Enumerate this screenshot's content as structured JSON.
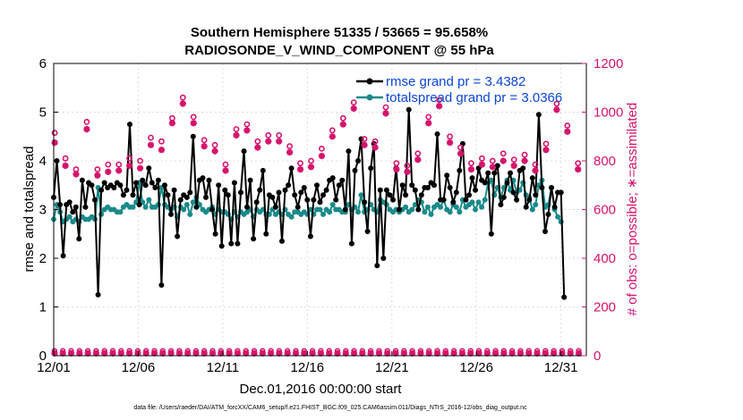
{
  "chart_data": {
    "type": "line",
    "title": "Southern Hemisphere 51335 / 53665 = 95.658%",
    "subtitle": "RADIOSONDE_V_WIND_COMPONENT @ 55 hPa",
    "xlabel": "Dec.01,2016 00:00:00 start",
    "ylabel_left": "rmse and totalspread",
    "ylabel_right": "# of obs: o=possible; ∗=assimilated",
    "footnote": "data file: /Users/raeder/DAI/ATM_forcXX/CAM6_setup/f.e21.FHIST_BGC.f09_025.CAM6assim.011/Diags_NTrS_2016-12/obs_diag_output.nc",
    "xlim": [
      0,
      31.5
    ],
    "ylim_left": [
      0,
      6
    ],
    "ylim_right": [
      0,
      1200
    ],
    "x_ticks": [
      0,
      5,
      10,
      15,
      20,
      25,
      30
    ],
    "x_tick_labels": [
      "12/01",
      "12/06",
      "12/11",
      "12/16",
      "12/21",
      "12/26",
      "12/31"
    ],
    "y_ticks_left": [
      0,
      1,
      2,
      3,
      4,
      5,
      6
    ],
    "y_ticks_right": [
      0,
      200,
      400,
      600,
      800,
      1000,
      1200
    ],
    "series": [
      {
        "name": "rmse grand pr = 3.4382",
        "axis": "left",
        "color": "#000000",
        "values": [
          3.25,
          4.0,
          3.1,
          2.05,
          3.1,
          3.15,
          2.95,
          3.05,
          2.4,
          3.6,
          3.05,
          3.55,
          3.5,
          3.2,
          1.25,
          3.4,
          3.55,
          3.45,
          3.5,
          3.45,
          3.55,
          3.5,
          3.3,
          3.4,
          4.75,
          3.3,
          3.55,
          3.1,
          3.6,
          3.5,
          3.85,
          3.55,
          3.45,
          3.6,
          1.45,
          3.5,
          3.3,
          2.9,
          3.4,
          2.45,
          3.2,
          3.3,
          3.25,
          3.35,
          4.5,
          3.05,
          3.6,
          3.65,
          3.25,
          3.6,
          3.0,
          2.5,
          3.5,
          2.25,
          3.4,
          3.3,
          2.3,
          3.55,
          2.3,
          3.35,
          4.2,
          3.05,
          3.6,
          2.4,
          3.15,
          3.4,
          3.8,
          2.5,
          3.3,
          3.25,
          3.05,
          3.35,
          2.35,
          3.4,
          3.5,
          3.85,
          3.3,
          3.05,
          3.35,
          3.45,
          3.2,
          2.45,
          3.2,
          3.5,
          3.15,
          3.3,
          3.4,
          3.6,
          3.65,
          3.2,
          3.5,
          3.6,
          3.0,
          4.2,
          2.3,
          3.8,
          4.0,
          4.45,
          3.15,
          2.55,
          3.85,
          4.35,
          1.85,
          3.4,
          2.0,
          3.4,
          3.3,
          3.2,
          3.85,
          3.0,
          3.5,
          3.3,
          5.05,
          3.5,
          3.4,
          3.0,
          3.3,
          3.45,
          3.45,
          3.55,
          3.5,
          4.55,
          3.2,
          3.2,
          3.7,
          3.45,
          3.15,
          3.35,
          3.8,
          4.35,
          3.2,
          3.3,
          3.65,
          3.4,
          3.85,
          3.6,
          3.55,
          3.75,
          2.5,
          3.75,
          3.9,
          3.1,
          3.25,
          3.55,
          3.75,
          3.35,
          3.2,
          3.8,
          3.85,
          3.05,
          3.2,
          3.65,
          3.3,
          4.95,
          3.45,
          2.55,
          2.9,
          3.45,
          3.05,
          3.35,
          3.35,
          1.2
        ],
        "x_start": 0,
        "x_step": 0.1875
      },
      {
        "name": "totalspread grand pr = 3.0366",
        "axis": "left",
        "color": "#1a8a8a",
        "values": [
          2.8,
          3.1,
          2.95,
          2.75,
          2.8,
          2.85,
          2.75,
          2.8,
          2.75,
          2.85,
          2.8,
          2.8,
          2.85,
          2.8,
          3.45,
          2.9,
          3.0,
          3.05,
          3.0,
          3.0,
          2.95,
          2.95,
          3.05,
          3.1,
          3.05,
          3.05,
          3.15,
          3.55,
          3.15,
          3.05,
          3.2,
          3.05,
          3.05,
          3.1,
          3.45,
          3.1,
          3.05,
          3.0,
          3.05,
          2.85,
          3.05,
          3.0,
          3.1,
          2.9,
          3.15,
          3.25,
          3.1,
          3.0,
          2.95,
          3.0,
          3.05,
          2.9,
          3.0,
          2.95,
          2.95,
          2.9,
          2.8,
          2.95,
          2.85,
          2.95,
          2.9,
          2.95,
          3.0,
          2.85,
          3.0,
          2.95,
          3.0,
          2.9,
          2.9,
          3.0,
          2.9,
          2.95,
          2.9,
          3.0,
          2.9,
          2.85,
          2.95,
          2.95,
          2.9,
          2.95,
          2.9,
          3.0,
          2.9,
          3.0,
          3.0,
          2.9,
          3.0,
          2.95,
          3.1,
          3.0,
          3.0,
          2.95,
          2.95,
          3.1,
          3.0,
          3.05,
          2.95,
          3.3,
          2.95,
          3.0,
          3.1,
          3.0,
          2.95,
          3.2,
          3.15,
          3.1,
          3.0,
          2.95,
          3.0,
          2.95,
          3.0,
          3.05,
          2.95,
          3.0,
          3.1,
          3.2,
          3.15,
          2.95,
          3.05,
          2.9,
          3.05,
          3.1,
          3.05,
          3.2,
          3.0,
          2.95,
          3.1,
          3.05,
          2.95,
          3.2,
          3.05,
          3.1,
          3.15,
          3.0,
          3.15,
          3.05,
          3.2,
          3.55,
          3.6,
          3.3,
          3.45,
          3.25,
          3.45,
          3.6,
          3.4,
          3.6,
          3.35,
          3.4,
          3.55,
          3.3,
          3.25,
          3.0,
          3.1,
          3.5,
          3.6,
          3.05,
          3.1,
          3.45,
          3.0,
          2.85,
          2.75
        ],
        "x_start": 0,
        "x_step": 0.1875
      }
    ],
    "obs_possible": {
      "name": "# of obs possible",
      "axis": "right",
      "marker": "o",
      "color": "#d6136c",
      "values": [
        915,
        810,
        765,
        960,
        765,
        785,
        785,
        810,
        800,
        895,
        880,
        975,
        1060,
        980,
        885,
        865,
        785,
        930,
        950,
        880,
        905,
        905,
        860,
        790,
        800,
        850,
        925,
        975,
        1040,
        890,
        880,
        1020,
        790,
        780,
        830,
        980,
        1050,
        900,
        855,
        790,
        810,
        800,
        830,
        805,
        825,
        785,
        870,
        1035,
        945,
        790
      ]
    },
    "obs_assimilated": {
      "name": "# of obs assimilated",
      "axis": "right",
      "marker": "*",
      "color": "#d6136c",
      "values": [
        875,
        780,
        745,
        930,
        740,
        755,
        760,
        780,
        770,
        865,
        845,
        955,
        1035,
        955,
        860,
        840,
        760,
        905,
        925,
        855,
        880,
        880,
        835,
        765,
        775,
        820,
        900,
        950,
        1015,
        865,
        855,
        995,
        765,
        755,
        805,
        955,
        1025,
        875,
        830,
        765,
        785,
        775,
        800,
        780,
        800,
        760,
        845,
        1010,
        920,
        765
      ]
    },
    "obs_possible_low": {
      "axis": "right",
      "marker": "o",
      "color": "#d6136c",
      "value": 20
    },
    "obs_assimilated_low": {
      "axis": "right",
      "marker": "*",
      "color": "#d6136c",
      "value": 10
    }
  }
}
